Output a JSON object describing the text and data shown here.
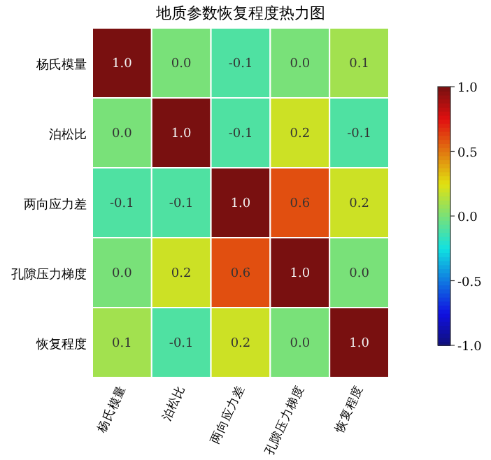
{
  "chart_data": {
    "type": "heatmap",
    "title": "地质参数恢复程度热力图",
    "categories": [
      "杨氏模量",
      "泊松比",
      "两向应力差",
      "孔隙压力梯度",
      "恢复程度"
    ],
    "y_categories": [
      "杨氏模量",
      "泊松比",
      "两向应力差",
      "孔隙压力梯度",
      "恢复程度"
    ],
    "cells": [
      [
        1.0,
        0.0,
        -0.1,
        0.0,
        0.1
      ],
      [
        0.0,
        1.0,
        -0.1,
        0.2,
        -0.1
      ],
      [
        -0.1,
        -0.1,
        1.0,
        0.6,
        0.2
      ],
      [
        0.0,
        0.2,
        0.6,
        1.0,
        0.0
      ],
      [
        0.1,
        -0.1,
        0.2,
        0.0,
        1.0
      ]
    ],
    "cell_labels": [
      [
        "1.0",
        "0.0",
        "-0.1",
        "0.0",
        "0.1"
      ],
      [
        "0.0",
        "1.0",
        "-0.1",
        "0.2",
        "-0.1"
      ],
      [
        "-0.1",
        "-0.1",
        "1.0",
        "0.6",
        "0.2"
      ],
      [
        "0.0",
        "0.2",
        "0.6",
        "1.0",
        "0.0"
      ],
      [
        "0.1",
        "-0.1",
        "0.2",
        "0.0",
        "1.0"
      ]
    ],
    "clim": [
      -1,
      1
    ],
    "cticks": [
      {
        "value": -1,
        "label": "-1.0"
      },
      {
        "value": -0.5,
        "label": "-0.5"
      },
      {
        "value": 0,
        "label": "0.0"
      },
      {
        "value": 0.5,
        "label": "0.5"
      },
      {
        "value": 1,
        "label": "1.0"
      }
    ]
  }
}
